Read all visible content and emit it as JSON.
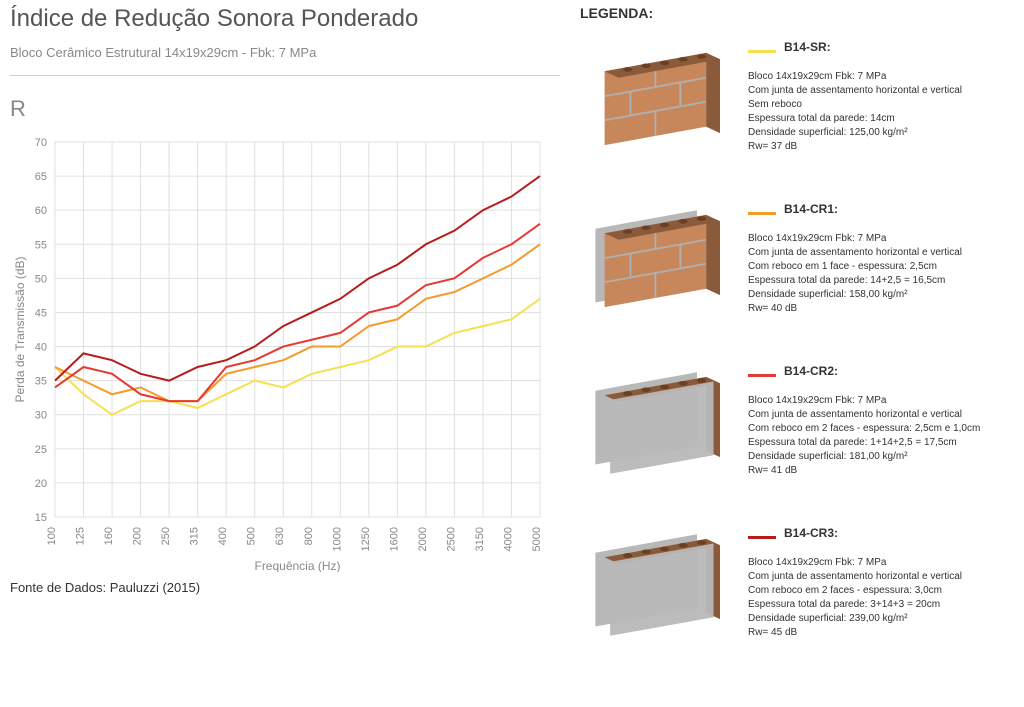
{
  "title": "Índice de Redução Sonora Ponderado",
  "subtitle": "Bloco Cerâmico Estrutural 14x19x29cm - Fbk: 7 MPa",
  "r_label": "R",
  "source": "Fonte de Dados: Pauluzzi (2015)",
  "legend_title": "LEGENDA:",
  "chart": {
    "type": "line",
    "xlabel": "Frequência (Hz)",
    "ylabel": "Perda de Transmissão (dB)",
    "ylim": [
      15,
      70
    ],
    "ytick_step": 5,
    "x_categories": [
      "100",
      "125",
      "160",
      "200",
      "250",
      "315",
      "400",
      "500",
      "630",
      "800",
      "1000",
      "1250",
      "1600",
      "2000",
      "2500",
      "3150",
      "4000",
      "5000"
    ],
    "grid_color": "#e0e0e0",
    "background_color": "#ffffff",
    "line_width": 2,
    "axis_fontsize": 11,
    "label_fontsize": 12,
    "series": [
      {
        "name": "B14-SR",
        "color": "#f5e050",
        "values": [
          37,
          33,
          30,
          32,
          32,
          31,
          33,
          35,
          34,
          36,
          37,
          38,
          40,
          40,
          42,
          43,
          44,
          47
        ]
      },
      {
        "name": "B14-CR1",
        "color": "#f39c2c",
        "values": [
          37,
          35,
          33,
          34,
          32,
          32,
          36,
          37,
          38,
          40,
          40,
          43,
          44,
          47,
          48,
          50,
          52,
          55
        ]
      },
      {
        "name": "B14-CR2",
        "color": "#e53935",
        "values": [
          34,
          37,
          36,
          33,
          32,
          32,
          37,
          38,
          40,
          41,
          42,
          45,
          46,
          49,
          50,
          53,
          55,
          58
        ]
      },
      {
        "name": "B14-CR3",
        "color": "#b71c1c",
        "values": [
          35,
          39,
          38,
          36,
          35,
          37,
          38,
          40,
          43,
          45,
          47,
          50,
          52,
          55,
          57,
          60,
          62,
          65
        ]
      }
    ]
  },
  "legend_items": [
    {
      "code": "B14-SR:",
      "swatch": "#f5e050",
      "wall_type": "bare",
      "lines": [
        "Bloco 14x19x29cm Fbk: 7 MPa",
        "Com junta de assentamento horizontal e vertical",
        "Sem reboco",
        "Espessura total da parede: 14cm",
        "Densidade superficial: 125,00 kg/m²",
        "Rw= 37 dB"
      ]
    },
    {
      "code": "B14-CR1:",
      "swatch": "#f39c2c",
      "wall_type": "one-side",
      "lines": [
        "Bloco 14x19x29cm Fbk: 7 MPa",
        "Com junta de assentamento horizontal e vertical",
        "Com reboco em 1 face - espessura: 2,5cm",
        "Espessura total da parede: 14+2,5 = 16,5cm",
        "Densidade superficial: 158,00 kg/m²",
        "Rw= 40 dB"
      ]
    },
    {
      "code": "B14-CR2:",
      "swatch": "#e53935",
      "wall_type": "two-side-thin",
      "lines": [
        "Bloco 14x19x29cm Fbk: 7 MPa",
        "Com junta de assentamento horizontal e vertical",
        "Com reboco em 2 faces - espessura: 2,5cm e 1,0cm",
        "Espessura total da parede: 1+14+2,5 = 17,5cm",
        "Densidade superficial: 181,00 kg/m²",
        "Rw= 41 dB"
      ]
    },
    {
      "code": "B14-CR3:",
      "swatch": "#b71c1c",
      "wall_type": "two-side-thick",
      "lines": [
        "Bloco 14x19x29cm Fbk: 7 MPa",
        "Com junta de assentamento horizontal e vertical",
        "Com reboco em 2 faces - espessura: 3,0cm",
        "Espessura total da parede: 3+14+3 = 20cm",
        "Densidade superficial: 239,00 kg/m²",
        "Rw= 45 dB"
      ]
    }
  ]
}
